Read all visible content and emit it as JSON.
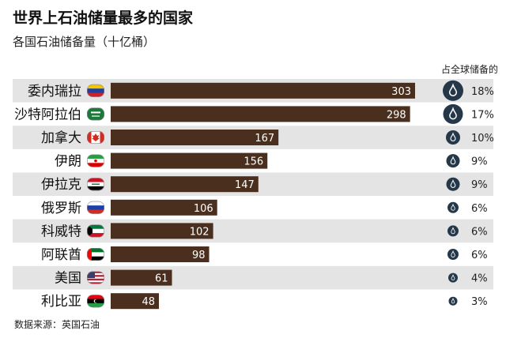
{
  "chart_data": {
    "type": "bar",
    "orientation": "horizontal",
    "title": "世界上石油储量最多的国家",
    "subtitle": "各国石油储备量（十亿桶）",
    "share_header": "占全球储备的",
    "source": "数据来源：英国石油",
    "categories": [
      "委内瑞拉",
      "沙特阿拉伯",
      "加拿大",
      "伊朗",
      "伊拉克",
      "俄罗斯",
      "科威特",
      "阿联酋",
      "美国",
      "利比亚"
    ],
    "values": [
      303,
      298,
      167,
      156,
      147,
      106,
      102,
      98,
      61,
      48
    ],
    "value_labels": [
      "303",
      "298",
      "167",
      "156",
      "147",
      "106",
      "102",
      "98",
      "61",
      "48"
    ],
    "shares": [
      18,
      17,
      10,
      9,
      9,
      6,
      6,
      6,
      4,
      3
    ],
    "share_labels": [
      "18%",
      "17%",
      "10%",
      "9%",
      "9%",
      "6%",
      "6%",
      "6%",
      "4%",
      "3%"
    ],
    "flags": [
      "venezuela-flag-icon",
      "saudi-arabia-flag-icon",
      "canada-flag-icon",
      "iran-flag-icon",
      "iraq-flag-icon",
      "russia-flag-icon",
      "kuwait-flag-icon",
      "uae-flag-icon",
      "usa-flag-icon",
      "libya-flag-icon"
    ],
    "colors": {
      "bar": "#4a2f1e",
      "row_band": "#e4e4e4",
      "drop_circle": "#25384a",
      "value_text": "#ffffff"
    },
    "xlim": [
      0,
      303
    ],
    "grid": false,
    "legend": "none"
  }
}
